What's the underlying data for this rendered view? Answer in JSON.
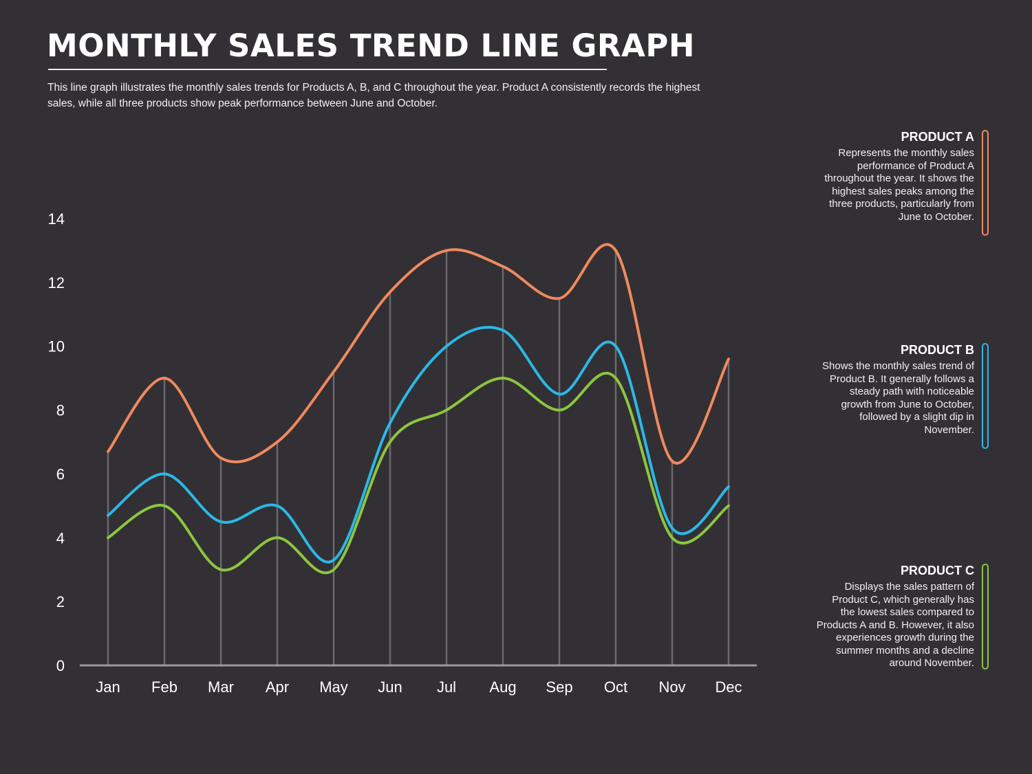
{
  "header": {
    "title": "MONTHLY SALES TREND LINE GRAPH",
    "subtitle": "This line graph illustrates the monthly sales trends for Products A, B, and C throughout the year. Product A consistently records the highest sales, while all three products show peak performance between June and October."
  },
  "legend": [
    {
      "title": "PRODUCT A",
      "desc": "Represents the monthly sales performance of Product A throughout the year. It shows the highest sales peaks among the three products, particularly from June to October.",
      "color": "#f08a5d"
    },
    {
      "title": "PRODUCT B",
      "desc": "Shows the monthly sales trend of Product B. It generally follows a steady path with noticeable growth from June to October, followed by a slight dip in November.",
      "color": "#2bb8e6"
    },
    {
      "title": "PRODUCT C",
      "desc": "Displays the sales pattern of Product C, which generally has the lowest sales compared to Products A and B. However, it also experiences growth during the summer months and a decline around November.",
      "color": "#8cc63f"
    }
  ],
  "chart_data": {
    "type": "line",
    "categories": [
      "Jan",
      "Feb",
      "Mar",
      "Apr",
      "May",
      "Jun",
      "Jul",
      "Aug",
      "Sep",
      "Oct",
      "Nov",
      "Dec"
    ],
    "series": [
      {
        "name": "PRODUCT A",
        "color": "#f08a5d",
        "values": [
          6.7,
          9.0,
          6.5,
          7.0,
          9.2,
          11.7,
          13.0,
          12.5,
          11.5,
          13.0,
          6.4,
          9.6
        ]
      },
      {
        "name": "PRODUCT B",
        "color": "#2bb8e6",
        "values": [
          4.7,
          6.0,
          4.5,
          5.0,
          3.3,
          7.6,
          10.0,
          10.5,
          8.5,
          10.0,
          4.3,
          5.6
        ]
      },
      {
        "name": "PRODUCT C",
        "color": "#8cc63f",
        "values": [
          4.0,
          5.0,
          3.0,
          4.0,
          3.0,
          7.0,
          8.0,
          9.0,
          8.0,
          9.0,
          4.0,
          5.0
        ]
      }
    ],
    "ylim": [
      0,
      14
    ],
    "yticks": [
      0,
      2,
      4,
      6,
      8,
      10,
      12,
      14
    ],
    "grid": "vertical",
    "legend_position": "right"
  }
}
